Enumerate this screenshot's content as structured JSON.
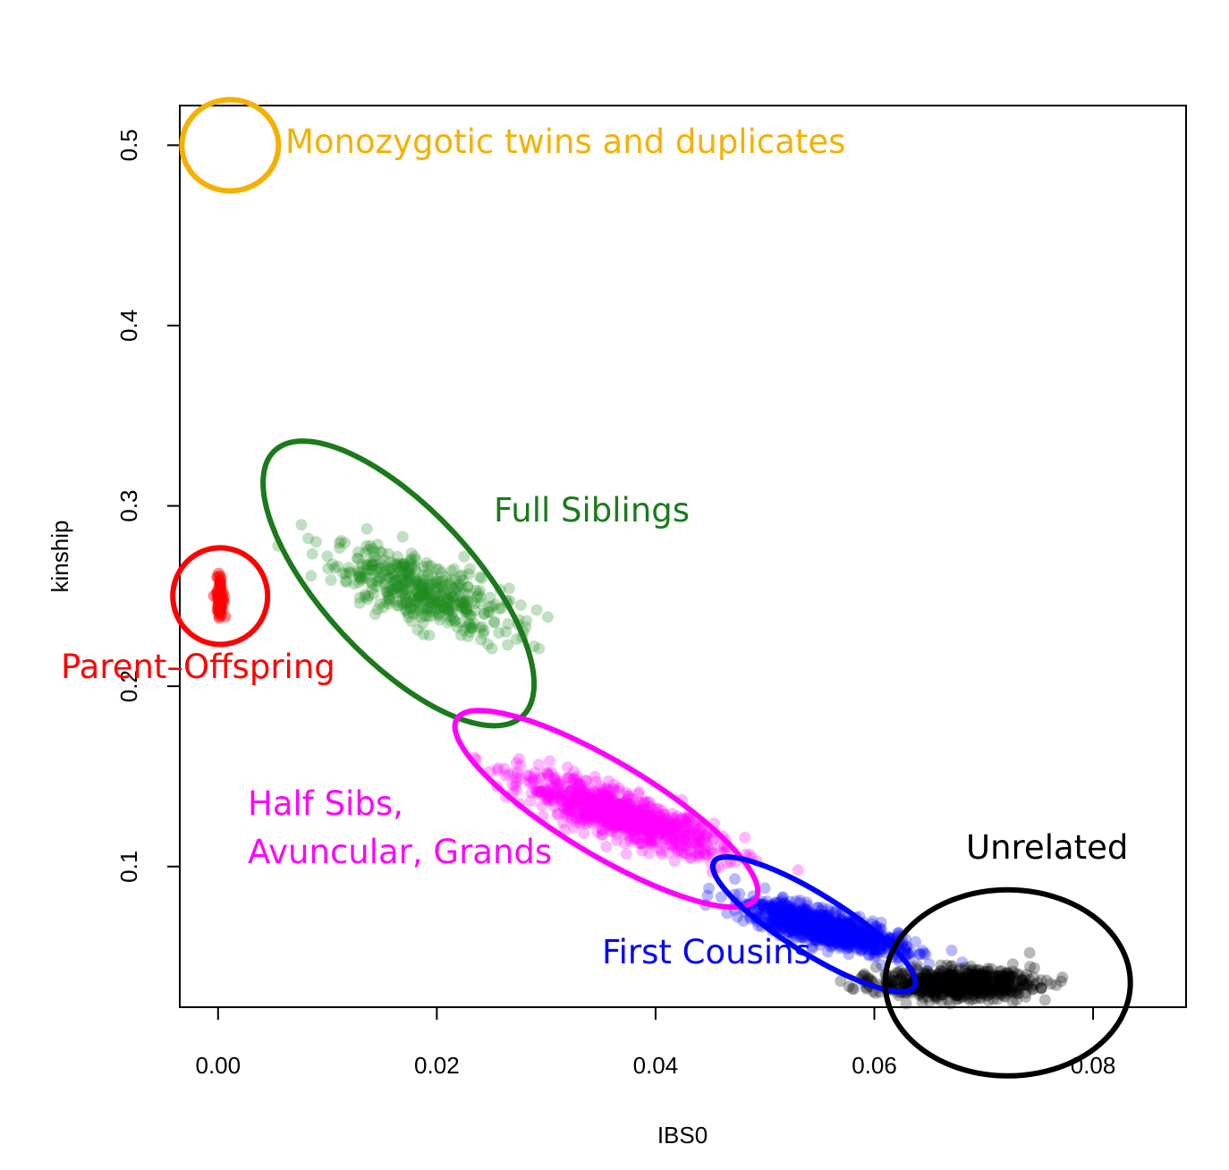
{
  "chart_data": {
    "type": "scatter",
    "title": "",
    "xlabel": "IBS0",
    "ylabel": "kinship",
    "xlim": [
      -0.0035,
      0.0885
    ],
    "ylim": [
      0.022,
      0.522
    ],
    "xticks": [
      0.0,
      0.02,
      0.04,
      0.06,
      0.08
    ],
    "xtick_labels": [
      "0.00",
      "0.02",
      "0.04",
      "0.06",
      "0.08"
    ],
    "yticks": [
      0.1,
      0.2,
      0.3,
      0.4,
      0.5
    ],
    "ytick_labels": [
      "0.1",
      "0.2",
      "0.3",
      "0.4",
      "0.5"
    ],
    "grid": false,
    "groups": [
      {
        "name": "Parent-Offspring",
        "label_lines": [
          "Parent–Offspring"
        ],
        "color": "#ff0000",
        "count": 60,
        "x_center": 0.0002,
        "x_spread": 0.0002,
        "y_center": 0.249,
        "y_spread": 0.006,
        "ellipse": {
          "cx": 0.0002,
          "cy": 0.25,
          "rx": 0.0044,
          "ry": 0.027,
          "angle_deg": 0
        }
      },
      {
        "name": "Full Siblings",
        "label_lines": [
          "Full Siblings"
        ],
        "color": "#228b22",
        "count": 450,
        "x_center": 0.0185,
        "x_spread": 0.004,
        "y_center": 0.253,
        "slope": -2.0,
        "y_noise": 0.009,
        "ellipse": {
          "cx": 0.0165,
          "cy": 0.257,
          "rx": 0.017,
          "ry": 0.016,
          "angle_deg": 0
        }
      },
      {
        "name": "Half Sibs, Avuncular, Grands",
        "label_lines": [
          "Half Sibs,",
          "Avuncular, Grands"
        ],
        "color": "#ff00ff",
        "count": 900,
        "x_center": 0.037,
        "x_spread": 0.0045,
        "y_center": 0.128,
        "slope": -2.0,
        "y_noise": 0.006,
        "ellipse": {
          "cx": 0.0355,
          "cy": 0.132,
          "rx": 0.015,
          "ry": 0.012,
          "angle_deg": 0
        }
      },
      {
        "name": "First Cousins",
        "label_lines": [
          "First Cousins"
        ],
        "color": "#0000ff",
        "count": 900,
        "x_center": 0.0555,
        "x_spread": 0.0035,
        "y_center": 0.066,
        "slope": -1.55,
        "y_noise": 0.0045,
        "ellipse": {
          "cx": 0.0545,
          "cy": 0.068,
          "rx": 0.011,
          "ry": 0.007,
          "angle_deg": 0
        }
      },
      {
        "name": "Unrelated",
        "label_lines": [
          "Unrelated"
        ],
        "color": "#000000",
        "count": 700,
        "x_center": 0.0675,
        "x_spread": 0.0035,
        "y_center": 0.035,
        "y_spread": 0.004,
        "ellipse": {
          "cx": 0.0722,
          "cy": 0.0355,
          "rx": 0.0102,
          "ry": 0.0265,
          "angle_deg": 0
        }
      },
      {
        "name": "Monozygotic twins and duplicates",
        "label_lines": [
          "Monozygotic twins and duplicates"
        ],
        "color": "#f5b000",
        "count": 0,
        "ellipse": {
          "cx": 0.0011,
          "cy": 0.5,
          "rx": 0.0043,
          "ry": 0.027,
          "angle_deg": 0
        }
      }
    ]
  }
}
